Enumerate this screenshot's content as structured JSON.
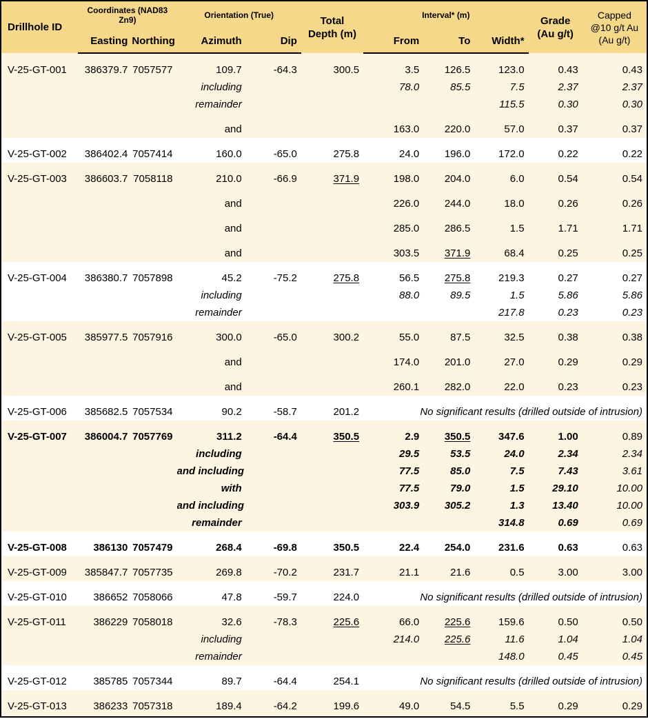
{
  "colors": {
    "header_bg": "#F6D88A",
    "row_cream": "#FDF5E2",
    "row_white": "#FFFFFF",
    "border": "#000000",
    "text": "#000000"
  },
  "header": {
    "drillhole_id": "Drillhole ID",
    "coordinates_group": "Coordinates (NAD83 Zn9)",
    "orientation_group": "Orientation (True)",
    "interval_group": "Interval* (m)",
    "total_depth_line1": "Total",
    "total_depth_line2": "Depth (m)",
    "grade_line1": "Grade",
    "grade_line2": "(Au g/t)",
    "capped_line1": "Capped",
    "capped_line2": "@10 g/t Au",
    "capped_line3": "(Au g/t)",
    "easting": "Easting",
    "northing": "Northing",
    "azimuth": "Azimuth",
    "dip": "Dip",
    "from": "From",
    "to": "To",
    "width": "Width*"
  },
  "no_results_text": "No significant results (drilled outside of intrusion)",
  "rows": [
    {
      "id": "V-25-GT-001",
      "easting": "386379.7",
      "northing": "7057577",
      "azimuth": "109.7",
      "dip": "-64.3",
      "depth": "300.5",
      "from": "3.5",
      "to": "126.5",
      "width": "123.0",
      "grade": "0.43",
      "capped": "0.43",
      "bg": "cream",
      "gap": true
    },
    {
      "label": "including",
      "italic": true,
      "from": "78.0",
      "to": "85.5",
      "width": "7.5",
      "grade": "2.37",
      "capped": "2.37",
      "bg": "cream"
    },
    {
      "label": "remainder",
      "italic": true,
      "width": "115.5",
      "grade": "0.30",
      "capped": "0.30",
      "bg": "cream"
    },
    {
      "label": "and",
      "from": "163.0",
      "to": "220.0",
      "width": "57.0",
      "grade": "0.37",
      "capped": "0.37",
      "bg": "cream",
      "gap": true
    },
    {
      "id": "V-25-GT-002",
      "easting": "386402.4",
      "northing": "7057414",
      "azimuth": "160.0",
      "dip": "-65.0",
      "depth": "275.8",
      "from": "24.0",
      "to": "196.0",
      "width": "172.0",
      "grade": "0.22",
      "capped": "0.22",
      "bg": "white",
      "gap": true
    },
    {
      "id": "V-25-GT-003",
      "easting": "386603.7",
      "northing": "7058118",
      "azimuth": "210.0",
      "dip": "-66.9",
      "depth": "371.9",
      "depth_u": true,
      "from": "198.0",
      "to": "204.0",
      "width": "6.0",
      "grade": "0.54",
      "capped": "0.54",
      "bg": "cream",
      "gap": true
    },
    {
      "label": "and",
      "from": "226.0",
      "to": "244.0",
      "width": "18.0",
      "grade": "0.26",
      "capped": "0.26",
      "bg": "cream",
      "gap": true
    },
    {
      "label": "and",
      "from": "285.0",
      "to": "286.5",
      "width": "1.5",
      "grade": "1.71",
      "capped": "1.71",
      "bg": "cream",
      "gap": true
    },
    {
      "label": "and",
      "from": "303.5",
      "to": "371.9",
      "to_u": true,
      "width": "68.4",
      "grade": "0.25",
      "capped": "0.25",
      "bg": "cream",
      "gap": true
    },
    {
      "id": "V-25-GT-004",
      "easting": "386380.7",
      "northing": "7057898",
      "azimuth": "45.2",
      "dip": "-75.2",
      "depth": "275.8",
      "depth_u": true,
      "from": "56.5",
      "to": "275.8",
      "to_u": true,
      "width": "219.3",
      "grade": "0.27",
      "capped": "0.27",
      "bg": "white",
      "gap": true
    },
    {
      "label": "including",
      "italic": true,
      "from": "88.0",
      "to": "89.5",
      "width": "1.5",
      "grade": "5.86",
      "capped": "5.86",
      "bg": "white"
    },
    {
      "label": "remainder",
      "italic": true,
      "width": "217.8",
      "grade": "0.23",
      "capped": "0.23",
      "bg": "white"
    },
    {
      "id": "V-25-GT-005",
      "easting": "385977.5",
      "northing": "7057916",
      "azimuth": "300.0",
      "dip": "-65.0",
      "depth": "300.2",
      "from": "55.0",
      "to": "87.5",
      "width": "32.5",
      "grade": "0.38",
      "capped": "0.38",
      "bg": "cream",
      "gap": true
    },
    {
      "label": "and",
      "from": "174.0",
      "to": "201.0",
      "width": "27.0",
      "grade": "0.29",
      "capped": "0.29",
      "bg": "cream",
      "gap": true
    },
    {
      "label": "and",
      "from": "260.1",
      "to": "282.0",
      "width": "22.0",
      "grade": "0.23",
      "capped": "0.23",
      "bg": "cream",
      "gap": true
    },
    {
      "id": "V-25-GT-006",
      "easting": "385682.5",
      "northing": "7057534",
      "azimuth": "90.2",
      "dip": "-58.7",
      "depth": "201.2",
      "no_results": true,
      "bg": "white",
      "gap": true
    },
    {
      "id": "V-25-GT-007",
      "bold": true,
      "easting": "386004.7",
      "northing": "7057769",
      "azimuth": "311.2",
      "dip": "-64.4",
      "depth": "350.5",
      "depth_u": true,
      "from": "2.9",
      "to": "350.5",
      "to_u": true,
      "width": "347.6",
      "grade": "1.00",
      "capped": "0.89",
      "capped_normal": true,
      "bg": "cream",
      "gap": true
    },
    {
      "label": "including",
      "bold": true,
      "italic": true,
      "from": "29.5",
      "to": "53.5",
      "width": "24.0",
      "grade": "2.34",
      "capped": "2.34",
      "capped_normal": true,
      "bg": "cream"
    },
    {
      "label": "and including",
      "bold": true,
      "italic": true,
      "from": "77.5",
      "to": "85.0",
      "width": "7.5",
      "grade": "7.43",
      "capped": "3.61",
      "capped_normal": true,
      "bg": "cream"
    },
    {
      "label": "with",
      "bold": true,
      "italic": true,
      "from": "77.5",
      "to": "79.0",
      "width": "1.5",
      "grade": "29.10",
      "capped": "10.00",
      "capped_normal": true,
      "bg": "cream"
    },
    {
      "label": "and including",
      "bold": true,
      "italic": true,
      "from": "303.9",
      "to": "305.2",
      "width": "1.3",
      "grade": "13.40",
      "capped": "10.00",
      "capped_normal": true,
      "bg": "cream"
    },
    {
      "label": "remainder",
      "bold": true,
      "italic": true,
      "width": "314.8",
      "grade": "0.69",
      "capped": "0.69",
      "capped_normal": true,
      "bg": "cream"
    },
    {
      "id": "V-25-GT-008",
      "bold": true,
      "easting": "386130",
      "northing": "7057479",
      "azimuth": "268.4",
      "dip": "-69.8",
      "depth": "350.5",
      "from": "22.4",
      "to": "254.0",
      "width": "231.6",
      "grade": "0.63",
      "capped": "0.63",
      "capped_normal": true,
      "bg": "white",
      "gap": true
    },
    {
      "id": "V-25-GT-009",
      "easting": "385847.7",
      "northing": "7057735",
      "azimuth": "269.8",
      "dip": "-70.2",
      "depth": "231.7",
      "from": "21.1",
      "to": "21.6",
      "width": "0.5",
      "grade": "3.00",
      "capped": "3.00",
      "bg": "cream",
      "gap": true
    },
    {
      "id": "V-25-GT-010",
      "easting": "386652",
      "northing": "7058066",
      "azimuth": "47.8",
      "dip": "-59.7",
      "depth": "224.0",
      "no_results": true,
      "bg": "white",
      "gap": true
    },
    {
      "id": "V-25-GT-011",
      "easting": "386229",
      "northing": "7058018",
      "azimuth": "32.6",
      "dip": "-78.3",
      "depth": "225.6",
      "depth_u": true,
      "from": "66.0",
      "to": "225.6",
      "to_u": true,
      "width": "159.6",
      "grade": "0.50",
      "capped": "0.50",
      "bg": "cream",
      "gap": true
    },
    {
      "label": "including",
      "italic": true,
      "from": "214.0",
      "to": "225.6",
      "to_u": true,
      "width": "11.6",
      "grade": "1.04",
      "capped": "1.04",
      "bg": "cream"
    },
    {
      "label": "remainder",
      "italic": true,
      "width": "148.0",
      "grade": "0.45",
      "capped": "0.45",
      "bg": "cream"
    },
    {
      "id": "V-25-GT-012",
      "easting": "385785",
      "northing": "7057344",
      "azimuth": "89.7",
      "dip": "-64.4",
      "depth": "254.1",
      "no_results": true,
      "bg": "white",
      "gap": true
    },
    {
      "id": "V-25-GT-013",
      "easting": "386233",
      "northing": "7057318",
      "azimuth": "189.4",
      "dip": "-64.2",
      "depth": "199.6",
      "from": "49.0",
      "to": "54.5",
      "width": "5.5",
      "grade": "0.29",
      "capped": "0.29",
      "bg": "cream",
      "gap": true
    }
  ]
}
